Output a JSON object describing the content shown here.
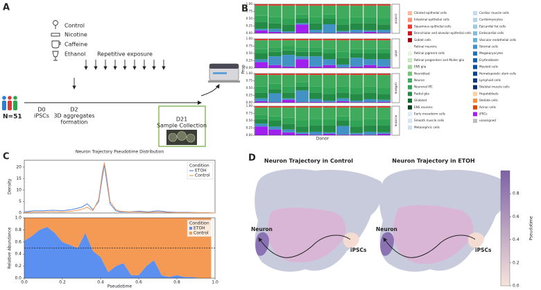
{
  "panel_labels": [
    "A",
    "B",
    "C",
    "D"
  ],
  "diagram": {
    "conditions": [
      "Control",
      "Nicotine",
      "Caffeine",
      "Ethanol"
    ],
    "cohort": "N=51",
    "timeline": [
      {
        "day": "D0",
        "lines": [
          "iPSCs"
        ]
      },
      {
        "day": "D2",
        "lines": [
          "3D aggregates",
          "formation"
        ]
      },
      {
        "day": "D21",
        "lines": [
          "Sample Collection"
        ]
      }
    ],
    "exposure": "Repetitive exposure"
  },
  "chart_data": [
    {
      "type": "stacked_bar",
      "ylabel": "Prop",
      "xlabel": "Donor",
      "ylim": [
        0,
        1
      ],
      "yticks": [
        {
          "value": 0,
          "label": "0.00"
        },
        {
          "value": 0.25,
          "label": "0.25"
        },
        {
          "value": 0.5,
          "label": "0.50"
        },
        {
          "value": 0.75,
          "label": "0.75"
        },
        {
          "value": 1,
          "label": "1.00"
        }
      ],
      "panels": [
        "control",
        "etoh",
        "caffeine",
        "nicotine"
      ],
      "series": [
        {
          "name": "Ciliated epithelial cells",
          "color": "#fcbba1"
        },
        {
          "name": "Intestinal epithelial cells",
          "color": "#fc9272"
        },
        {
          "name": "Squamous epithelial cells",
          "color": "#ef3b2c",
          "values": [
            [
              0.05,
              0.05,
              0.05,
              0.05,
              0.05,
              0.05,
              0.05,
              0.05,
              0.05,
              0.05
            ],
            [
              0.05,
              0.05,
              0.05,
              0.05,
              0.05,
              0.05,
              0.05,
              0.05,
              0.05,
              0.05
            ],
            [
              0.05,
              0.05,
              0.05,
              0.05,
              0.05,
              0.05,
              0.05,
              0.05,
              0.05,
              0.05
            ],
            [
              0.05,
              0.05,
              0.05,
              0.05,
              0.05,
              0.05,
              0.05,
              0.05,
              0.05,
              0.05
            ]
          ]
        },
        {
          "name": "Bronchiolar and alveolar epithelial cells",
          "color": "#cb181d"
        },
        {
          "name": "Goblet cells",
          "color": "#99000d"
        },
        {
          "name": "Retinal neurons",
          "color": "#f2faef"
        },
        {
          "name": "Retinal pigment cells",
          "color": "#e5f5e0"
        },
        {
          "name": "Retinal progenitors and Muller glia",
          "color": "#c7e9c0"
        },
        {
          "name": "ENS glia",
          "color": "#a1d99b"
        },
        {
          "name": "Neuroblast",
          "color": "#74c476"
        },
        {
          "name": "Neuron",
          "color": "#41ab5d",
          "values": [
            [
              0.35,
              0.4,
              0.45,
              0.3,
              0.4,
              0.3,
              0.45,
              0.4,
              0.4,
              0.45
            ],
            [
              0.3,
              0.25,
              0.2,
              0.25,
              0.25,
              0.3,
              0.4,
              0.3,
              0.3,
              0.3
            ],
            [
              0.4,
              0.3,
              0.4,
              0.25,
              0.4,
              0.45,
              0.4,
              0.45,
              0.4,
              0.45
            ],
            [
              0.25,
              0.3,
              0.35,
              0.45,
              0.4,
              0.4,
              0.3,
              0.45,
              0.4,
              0.4
            ]
          ]
        },
        {
          "name": "Neuronal IPC",
          "color": "#31a354",
          "values": [
            [
              0.2,
              0.2,
              0.2,
              0.15,
              0.2,
              0.15,
              0.2,
              0.2,
              0.2,
              0.2
            ],
            [
              0.15,
              0.15,
              0.15,
              0.15,
              0.15,
              0.15,
              0.2,
              0.15,
              0.15,
              0.15
            ],
            [
              0.2,
              0.18,
              0.2,
              0.15,
              0.2,
              0.2,
              0.2,
              0.2,
              0.2,
              0.2
            ],
            [
              0.15,
              0.15,
              0.2,
              0.2,
              0.2,
              0.2,
              0.15,
              0.2,
              0.2,
              0.2
            ]
          ]
        },
        {
          "name": "Radial glia",
          "color": "#238b45",
          "values": [
            [
              0.25,
              0.2,
              0.23,
              0.15,
              0.23,
              0.19,
              0.22,
              0.23,
              0.25,
              0.18
            ],
            [
              0.2,
              0.15,
              0.15,
              0.15,
              0.15,
              0.2,
              0.23,
              0.15,
              0.2,
              0.2
            ],
            [
              0.2,
              0.15,
              0.2,
              0.13,
              0.22,
              0.23,
              0.2,
              0.23,
              0.23,
              0.2
            ],
            [
              0.15,
              0.2,
              0.2,
              0.2,
              0.23,
              0.25,
              0.18,
              0.22,
              0.23,
              0.25
            ]
          ]
        },
        {
          "name": "Glioblast",
          "color": "#006d2c"
        },
        {
          "name": "ENS neurons",
          "color": "#00441b"
        },
        {
          "name": "Early mesoderm cells",
          "color": "#deebf7"
        },
        {
          "name": "Smooth muscle cells",
          "color": "#d6e4f2"
        },
        {
          "name": "Metanephric cells",
          "color": "#cfe0f0"
        },
        {
          "name": "Cardiac muscle cells",
          "color": "#c6dbef"
        },
        {
          "name": "Cardiomyocytes",
          "color": "#b3d3e8"
        },
        {
          "name": "Epicardial fat cells",
          "color": "#9ecae1"
        },
        {
          "name": "Endocardial cells",
          "color": "#85bcdb"
        },
        {
          "name": "Vascular endothelial cells",
          "color": "#6baed6"
        },
        {
          "name": "Stromal cells",
          "color": "#4292c6",
          "values": [
            [
              0.05,
              0.1,
              0.05,
              0.05,
              0.1,
              0.3,
              0.05,
              0.1,
              0.05,
              0.1
            ],
            [
              0.1,
              0.3,
              0.4,
              0.1,
              0.35,
              0.2,
              0.1,
              0.3,
              0.2,
              0.25
            ],
            [
              0.1,
              0.3,
              0.05,
              0.4,
              0.1,
              0.05,
              0.1,
              0.05,
              0.1,
              0.07
            ],
            [
              0.1,
              0.1,
              0.1,
              0.05,
              0.1,
              0.05,
              0.3,
              0.05,
              0.1,
              0.05
            ]
          ]
        },
        {
          "name": "Megakaryocytes",
          "color": "#2171b5"
        },
        {
          "name": "Erythroblasts",
          "color": "#1361a9"
        },
        {
          "name": "Myeloid cells",
          "color": "#08519c"
        },
        {
          "name": "Hematopoietic stem cells",
          "color": "#08458a"
        },
        {
          "name": "Lymphoid cells",
          "color": "#083b7a"
        },
        {
          "name": "Skeletal muscle cells",
          "color": "#08306b"
        },
        {
          "name": "Hepatoblasts",
          "color": "#fdd0a2"
        },
        {
          "name": "Stellate cells",
          "color": "#fd8d3c"
        },
        {
          "name": "Acinar cells",
          "color": "#d94801"
        },
        {
          "name": "iPSCs",
          "color": "#a020f0",
          "values": [
            [
              0.1,
              0.05,
              0.02,
              0.3,
              0.02,
              0.01,
              0.03,
              0.02,
              0.05,
              0.02
            ],
            [
              0.2,
              0.1,
              0.05,
              0.3,
              0.05,
              0.1,
              0.02,
              0.05,
              0.1,
              0.05
            ],
            [
              0.05,
              0.02,
              0.1,
              0.02,
              0.03,
              0.02,
              0.05,
              0.02,
              0.02,
              0.03
            ],
            [
              0.3,
              0.2,
              0.1,
              0.05,
              0.02,
              0.05,
              0.02,
              0.03,
              0.02,
              0.05
            ]
          ]
        },
        {
          "name": "unassigned",
          "color": "#bdbdbd"
        }
      ]
    },
    {
      "type": "line",
      "title": "Neuron Trajectory Pseudotime Distribution",
      "ylabel": "Density",
      "legend_title": "Condition",
      "x": [
        0,
        0.05,
        0.1,
        0.15,
        0.2,
        0.25,
        0.3,
        0.33,
        0.36,
        0.39,
        0.41,
        0.42,
        0.43,
        0.45,
        0.48,
        0.5,
        0.55,
        0.6,
        0.65,
        0.7,
        0.75,
        0.8,
        0.85,
        0.9,
        0.95,
        1.0
      ],
      "xlim": [
        0,
        1
      ],
      "ylim": [
        0,
        23
      ],
      "yticks": [
        0,
        5,
        10,
        15,
        20
      ],
      "series": [
        {
          "name": "ETOH",
          "color": "#4c84f0",
          "values": [
            0.5,
            1,
            1,
            1.2,
            1,
            1.5,
            2.5,
            4,
            1.5,
            5,
            16,
            21,
            15,
            4,
            1,
            0.5,
            0.5,
            0.8,
            0.5,
            1,
            0.5,
            0.3,
            0.3,
            0.2,
            0.1,
            0
          ]
        },
        {
          "name": "Control",
          "color": "#f59a50",
          "values": [
            0.2,
            0.5,
            0.5,
            0.6,
            0.5,
            0.8,
            1.5,
            2.5,
            1,
            6,
            18,
            22,
            17,
            5,
            1.5,
            0.8,
            0.5,
            0.5,
            0.3,
            0.5,
            0.3,
            0.2,
            0.2,
            0.1,
            0.1,
            0
          ]
        }
      ]
    },
    {
      "type": "stacked_area",
      "ylabel": "Relative Abundance",
      "xlabel": "Pseudotime",
      "legend_title": "Condition",
      "x": [
        0,
        0.04,
        0.08,
        0.12,
        0.16,
        0.2,
        0.24,
        0.28,
        0.32,
        0.36,
        0.4,
        0.44,
        0.48,
        0.52,
        0.56,
        0.6,
        0.64,
        0.68,
        0.72,
        0.76,
        0.8,
        0.84,
        0.88,
        0.92,
        0.96,
        0.98
      ],
      "xlim": [
        0,
        1
      ],
      "xticks": [
        {
          "value": 0,
          "label": "0.0"
        },
        {
          "value": 0.2,
          "label": "0.2"
        },
        {
          "value": 0.4,
          "label": "0.4"
        },
        {
          "value": 0.6,
          "label": "0.6"
        },
        {
          "value": 0.8,
          "label": "0.8"
        },
        {
          "value": 1,
          "label": "1.0"
        }
      ],
      "ylim": [
        0,
        1
      ],
      "yticks": [
        {
          "value": 0,
          "label": "0.0"
        },
        {
          "value": 0.2,
          "label": "0.2"
        },
        {
          "value": 0.4,
          "label": "0.4"
        },
        {
          "value": 0.6,
          "label": "0.6"
        },
        {
          "value": 0.8,
          "label": "0.8"
        },
        {
          "value": 1,
          "label": "1.0"
        }
      ],
      "hline": 0.5,
      "series": [
        {
          "name": "ETOH",
          "color": "#5b8ff0",
          "values": [
            0.62,
            0.7,
            0.8,
            0.85,
            0.75,
            0.6,
            0.55,
            0.5,
            0.75,
            0.45,
            0.35,
            0.1,
            0.2,
            0.25,
            0.05,
            0.05,
            0.2,
            0.3,
            0.05,
            0.02,
            0.05,
            0.02,
            0.02,
            0,
            0,
            0
          ]
        },
        {
          "name": "Control",
          "color": "#f59a55",
          "values": [
            0.38,
            0.3,
            0.2,
            0.15,
            0.25,
            0.4,
            0.45,
            0.5,
            0.25,
            0.55,
            0.65,
            0.9,
            0.8,
            0.75,
            0.95,
            0.95,
            0.8,
            0.7,
            0.95,
            0.98,
            0.95,
            0.98,
            0.98,
            1,
            1,
            1
          ]
        }
      ]
    },
    {
      "type": "umap",
      "titles": [
        "Neuron Trajectory in Control",
        "Neuron Trajectory in ETOH"
      ],
      "annotations": [
        "Neuron",
        "iPSCs"
      ],
      "colorbar_label": "Pseudotime",
      "clim": [
        0,
        1
      ],
      "cticks": [
        {
          "value": 0,
          "label": "0.0"
        },
        {
          "value": 0.2,
          "label": "0.2"
        },
        {
          "value": 0.4,
          "label": "0.4"
        },
        {
          "value": 0.6,
          "label": "0.6"
        },
        {
          "value": 0.8,
          "label": "0.8"
        }
      ],
      "cmap": [
        "#f7e3dc",
        "#7d62a6"
      ]
    }
  ]
}
